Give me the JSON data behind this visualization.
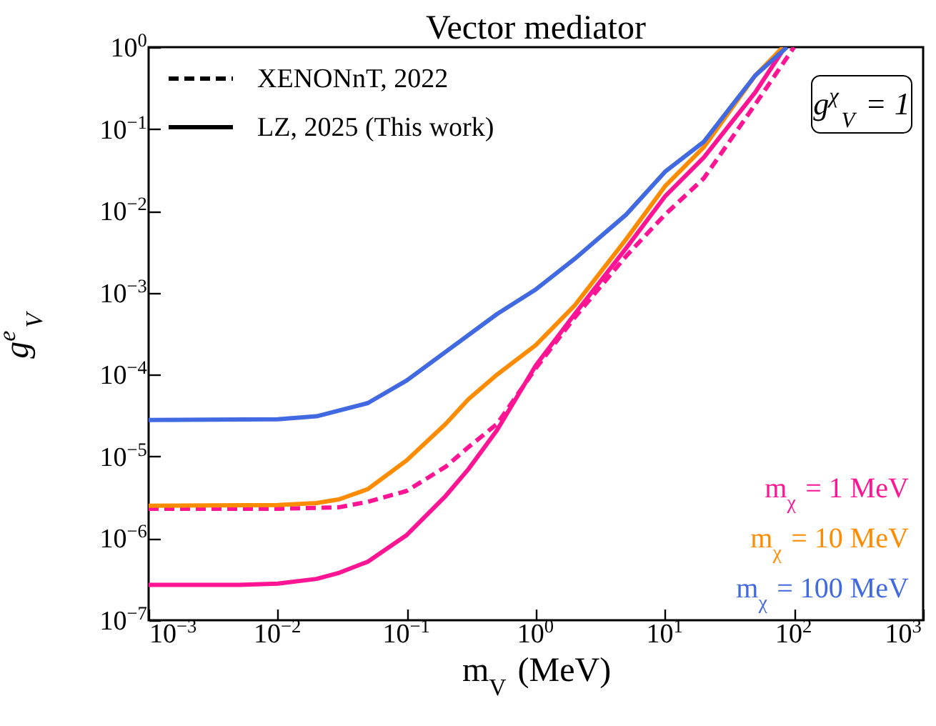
{
  "chart_data": {
    "type": "line",
    "title": "Vector mediator",
    "xlabel": "m$_{V}$ (MeV)",
    "ylabel": "g$^{e}$$_{V}$",
    "log": "xy",
    "xlim": [
      0.001,
      1000
    ],
    "ylim": [
      1e-07,
      1
    ],
    "xticks": [
      {
        "value": 0.001,
        "label": "10$^{−3}$"
      },
      {
        "value": 0.01,
        "label": "10$^{−2}$"
      },
      {
        "value": 0.1,
        "label": "10$^{−1}$"
      },
      {
        "value": 1,
        "label": "10$^{0}$"
      },
      {
        "value": 10,
        "label": "10$^{1}$"
      },
      {
        "value": 100,
        "label": "10$^{2}$"
      },
      {
        "value": 1000,
        "label": "10$^{3}$"
      }
    ],
    "yticks": [
      {
        "value": 1e-07,
        "label": "10$^{−7}$"
      },
      {
        "value": 1e-06,
        "label": "10$^{−6}$"
      },
      {
        "value": 1e-05,
        "label": "10$^{−5}$"
      },
      {
        "value": 0.0001,
        "label": "10$^{−4}$"
      },
      {
        "value": 0.001,
        "label": "10$^{−3}$"
      },
      {
        "value": 0.01,
        "label": "10$^{−2}$"
      },
      {
        "value": 0.1,
        "label": "10$^{−1}$"
      },
      {
        "value": 1,
        "label": "10$^{0}$"
      }
    ],
    "legend": "bottom right",
    "annotations": [
      "XENONnT, 2022",
      "LZ, 2025 (This work)",
      "g$^{χ}$$_{V}$ = 1"
    ],
    "series": [
      {
        "color": "#ff1493",
        "line_style": "dashed",
        "x": [
          0.001,
          0.01,
          0.03,
          0.05,
          0.1,
          0.2,
          0.3,
          0.5,
          1,
          2,
          5,
          10,
          20,
          50,
          100
        ],
        "values": [
          2.3e-06,
          2.3e-06,
          2.4e-06,
          2.8e-06,
          3.8e-06,
          7.5e-06,
          1.3e-05,
          2.5e-05,
          0.00012,
          0.0005,
          0.0028,
          0.009,
          0.025,
          0.2,
          1
        ]
      },
      {
        "name": "m$_{χ}$ = 1 MeV",
        "color": "#ff1493",
        "line_style": "solid",
        "x": [
          0.001,
          0.005,
          0.01,
          0.02,
          0.03,
          0.05,
          0.1,
          0.2,
          0.3,
          0.5,
          1,
          2,
          5,
          10,
          20,
          50,
          85
        ],
        "values": [
          2.7e-07,
          2.7e-07,
          2.8e-07,
          3.2e-07,
          3.8e-07,
          5.2e-07,
          1.1e-06,
          3.3e-06,
          7e-06,
          2.1e-05,
          0.00013,
          0.00055,
          0.0035,
          0.015,
          0.045,
          0.28,
          1
        ]
      },
      {
        "name": "m$_{χ}$ = 10 MeV",
        "color": "#ff8c00",
        "line_style": "solid",
        "x": [
          0.001,
          0.01,
          0.02,
          0.03,
          0.05,
          0.1,
          0.2,
          0.3,
          0.5,
          1,
          2,
          5,
          10,
          20,
          50,
          82
        ],
        "values": [
          2.5e-06,
          2.55e-06,
          2.7e-06,
          3e-06,
          4e-06,
          9e-06,
          2.5e-05,
          5e-05,
          0.0001,
          0.00023,
          0.0007,
          0.0045,
          0.02,
          0.06,
          0.45,
          1
        ]
      },
      {
        "name": "m$_{χ}$ = 100 MeV",
        "color": "#4169e1",
        "line_style": "solid",
        "x": [
          0.001,
          0.01,
          0.02,
          0.05,
          0.1,
          0.2,
          0.5,
          1,
          2,
          5,
          10,
          20,
          50,
          88
        ],
        "values": [
          2.8e-05,
          2.85e-05,
          3.1e-05,
          4.5e-05,
          8.5e-05,
          0.00019,
          0.00055,
          0.0011,
          0.0026,
          0.009,
          0.03,
          0.07,
          0.45,
          1
        ]
      }
    ]
  }
}
